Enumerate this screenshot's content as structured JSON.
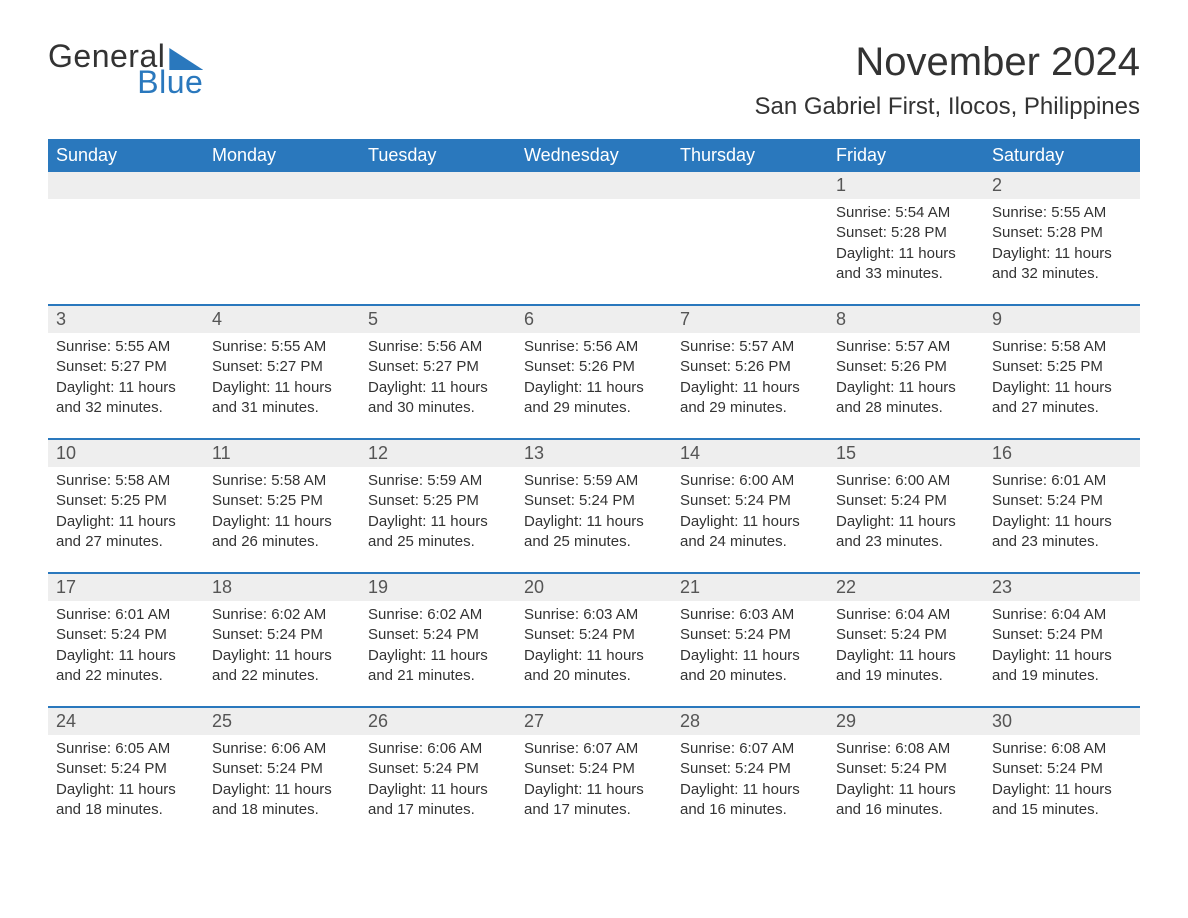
{
  "colors": {
    "brand_blue": "#2a78bd",
    "header_bg": "#2a78bd",
    "header_text": "#ffffff",
    "daynum_bg": "#eeeeee",
    "daynum_text": "#555555",
    "body_text": "#333333",
    "week_divider": "#2a78bd",
    "page_bg": "#ffffff"
  },
  "typography": {
    "base_family": "Arial, Helvetica, sans-serif",
    "month_title_size_pt": 30,
    "location_size_pt": 18,
    "dow_size_pt": 14,
    "daynum_size_pt": 14,
    "body_size_pt": 11
  },
  "logo": {
    "word1": "General",
    "word2": "Blue"
  },
  "title": "November 2024",
  "location": "San Gabriel First, Ilocos, Philippines",
  "days_of_week": [
    "Sunday",
    "Monday",
    "Tuesday",
    "Wednesday",
    "Thursday",
    "Friday",
    "Saturday"
  ],
  "calendar": {
    "type": "table",
    "columns": 7,
    "rows": 5,
    "first_day_column_index": 5,
    "days": [
      {
        "n": 1,
        "sunrise": "5:54 AM",
        "sunset": "5:28 PM",
        "daylight": "11 hours and 33 minutes."
      },
      {
        "n": 2,
        "sunrise": "5:55 AM",
        "sunset": "5:28 PM",
        "daylight": "11 hours and 32 minutes."
      },
      {
        "n": 3,
        "sunrise": "5:55 AM",
        "sunset": "5:27 PM",
        "daylight": "11 hours and 32 minutes."
      },
      {
        "n": 4,
        "sunrise": "5:55 AM",
        "sunset": "5:27 PM",
        "daylight": "11 hours and 31 minutes."
      },
      {
        "n": 5,
        "sunrise": "5:56 AM",
        "sunset": "5:27 PM",
        "daylight": "11 hours and 30 minutes."
      },
      {
        "n": 6,
        "sunrise": "5:56 AM",
        "sunset": "5:26 PM",
        "daylight": "11 hours and 29 minutes."
      },
      {
        "n": 7,
        "sunrise": "5:57 AM",
        "sunset": "5:26 PM",
        "daylight": "11 hours and 29 minutes."
      },
      {
        "n": 8,
        "sunrise": "5:57 AM",
        "sunset": "5:26 PM",
        "daylight": "11 hours and 28 minutes."
      },
      {
        "n": 9,
        "sunrise": "5:58 AM",
        "sunset": "5:25 PM",
        "daylight": "11 hours and 27 minutes."
      },
      {
        "n": 10,
        "sunrise": "5:58 AM",
        "sunset": "5:25 PM",
        "daylight": "11 hours and 27 minutes."
      },
      {
        "n": 11,
        "sunrise": "5:58 AM",
        "sunset": "5:25 PM",
        "daylight": "11 hours and 26 minutes."
      },
      {
        "n": 12,
        "sunrise": "5:59 AM",
        "sunset": "5:25 PM",
        "daylight": "11 hours and 25 minutes."
      },
      {
        "n": 13,
        "sunrise": "5:59 AM",
        "sunset": "5:24 PM",
        "daylight": "11 hours and 25 minutes."
      },
      {
        "n": 14,
        "sunrise": "6:00 AM",
        "sunset": "5:24 PM",
        "daylight": "11 hours and 24 minutes."
      },
      {
        "n": 15,
        "sunrise": "6:00 AM",
        "sunset": "5:24 PM",
        "daylight": "11 hours and 23 minutes."
      },
      {
        "n": 16,
        "sunrise": "6:01 AM",
        "sunset": "5:24 PM",
        "daylight": "11 hours and 23 minutes."
      },
      {
        "n": 17,
        "sunrise": "6:01 AM",
        "sunset": "5:24 PM",
        "daylight": "11 hours and 22 minutes."
      },
      {
        "n": 18,
        "sunrise": "6:02 AM",
        "sunset": "5:24 PM",
        "daylight": "11 hours and 22 minutes."
      },
      {
        "n": 19,
        "sunrise": "6:02 AM",
        "sunset": "5:24 PM",
        "daylight": "11 hours and 21 minutes."
      },
      {
        "n": 20,
        "sunrise": "6:03 AM",
        "sunset": "5:24 PM",
        "daylight": "11 hours and 20 minutes."
      },
      {
        "n": 21,
        "sunrise": "6:03 AM",
        "sunset": "5:24 PM",
        "daylight": "11 hours and 20 minutes."
      },
      {
        "n": 22,
        "sunrise": "6:04 AM",
        "sunset": "5:24 PM",
        "daylight": "11 hours and 19 minutes."
      },
      {
        "n": 23,
        "sunrise": "6:04 AM",
        "sunset": "5:24 PM",
        "daylight": "11 hours and 19 minutes."
      },
      {
        "n": 24,
        "sunrise": "6:05 AM",
        "sunset": "5:24 PM",
        "daylight": "11 hours and 18 minutes."
      },
      {
        "n": 25,
        "sunrise": "6:06 AM",
        "sunset": "5:24 PM",
        "daylight": "11 hours and 18 minutes."
      },
      {
        "n": 26,
        "sunrise": "6:06 AM",
        "sunset": "5:24 PM",
        "daylight": "11 hours and 17 minutes."
      },
      {
        "n": 27,
        "sunrise": "6:07 AM",
        "sunset": "5:24 PM",
        "daylight": "11 hours and 17 minutes."
      },
      {
        "n": 28,
        "sunrise": "6:07 AM",
        "sunset": "5:24 PM",
        "daylight": "11 hours and 16 minutes."
      },
      {
        "n": 29,
        "sunrise": "6:08 AM",
        "sunset": "5:24 PM",
        "daylight": "11 hours and 16 minutes."
      },
      {
        "n": 30,
        "sunrise": "6:08 AM",
        "sunset": "5:24 PM",
        "daylight": "11 hours and 15 minutes."
      }
    ]
  },
  "labels": {
    "sunrise": "Sunrise: ",
    "sunset": "Sunset: ",
    "daylight": "Daylight: "
  }
}
